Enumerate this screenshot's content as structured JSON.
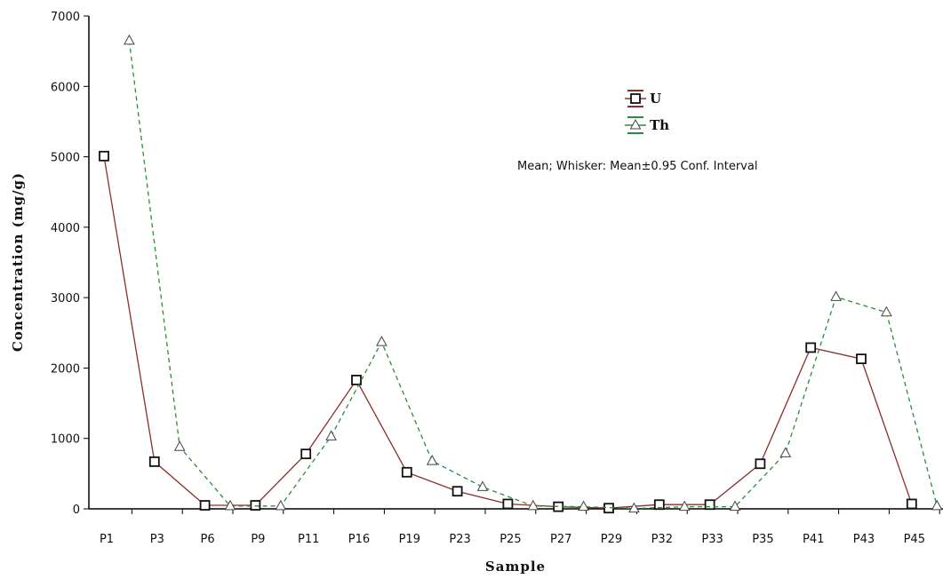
{
  "chart_data": {
    "type": "line",
    "xlabel": "Sample",
    "ylabel": "Concentration  (mg/g)",
    "ylim": [
      0,
      7000
    ],
    "yticks": [
      0,
      1000,
      2000,
      3000,
      4000,
      5000,
      6000,
      7000
    ],
    "categories": [
      "P1",
      "P3",
      "P6",
      "P9",
      "P11",
      "P16",
      "P19",
      "P23",
      "P25",
      "P27",
      "P29",
      "P32",
      "P33",
      "P35",
      "P41",
      "P43",
      "P45"
    ],
    "grid": false,
    "legend_position": "top-right",
    "note": "Mean; Whisker: Mean±0.95 Conf. Interval",
    "series": [
      {
        "name": "U",
        "color": "#8b2e2a",
        "marker": "square",
        "line_style": "solid",
        "values": [
          5010,
          670,
          50,
          50,
          780,
          1830,
          520,
          250,
          70,
          30,
          10,
          60,
          60,
          640,
          2290,
          2130,
          70
        ]
      },
      {
        "name": "Th",
        "color": "#2e8b3e",
        "marker": "triangle",
        "line_style": "dashed",
        "values": [
          6650,
          880,
          40,
          40,
          1030,
          2370,
          680,
          310,
          40,
          30,
          5,
          30,
          30,
          790,
          3010,
          2790,
          40
        ]
      }
    ]
  }
}
